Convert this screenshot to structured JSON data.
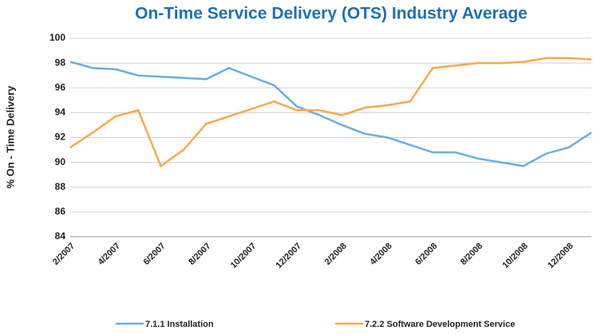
{
  "chart_data": {
    "type": "line",
    "title": "On-Time Service Delivery (OTS) Industry Average",
    "y_label": "% On - Time Delivery",
    "categories": [
      "2/2007",
      null,
      "4/2007",
      null,
      "6/2007",
      null,
      "8/2007",
      null,
      "10/2007",
      null,
      "12/2007",
      null,
      "2/2008",
      null,
      "4/2008",
      null,
      "6/2008",
      null,
      "8/2008",
      null,
      "10/2008",
      null,
      "12/2008",
      null
    ],
    "series": [
      {
        "name": "7.1.1 Installation",
        "color": "#6aaee0",
        "values": [
          98.1,
          97.6,
          97.5,
          97.0,
          96.9,
          96.8,
          96.7,
          97.6,
          96.9,
          96.2,
          94.5,
          93.8,
          93.0,
          92.3,
          92.0,
          91.4,
          90.8,
          90.8,
          90.3,
          90.0,
          89.7,
          90.7,
          91.2,
          92.4
        ]
      },
      {
        "name": "7.2.2 Software Development Service",
        "color": "#f6a94e",
        "values": [
          91.2,
          92.4,
          93.7,
          94.2,
          89.7,
          91.0,
          93.1,
          93.7,
          94.3,
          94.9,
          94.2,
          94.2,
          93.8,
          94.4,
          94.6,
          94.9,
          97.6,
          97.8,
          98.0,
          98.0,
          98.1,
          98.4,
          98.4,
          98.3
        ]
      }
    ],
    "ylim": [
      84,
      100
    ],
    "yticks": [
      84,
      86,
      88,
      90,
      92,
      94,
      96,
      98,
      100
    ],
    "grid": true
  }
}
